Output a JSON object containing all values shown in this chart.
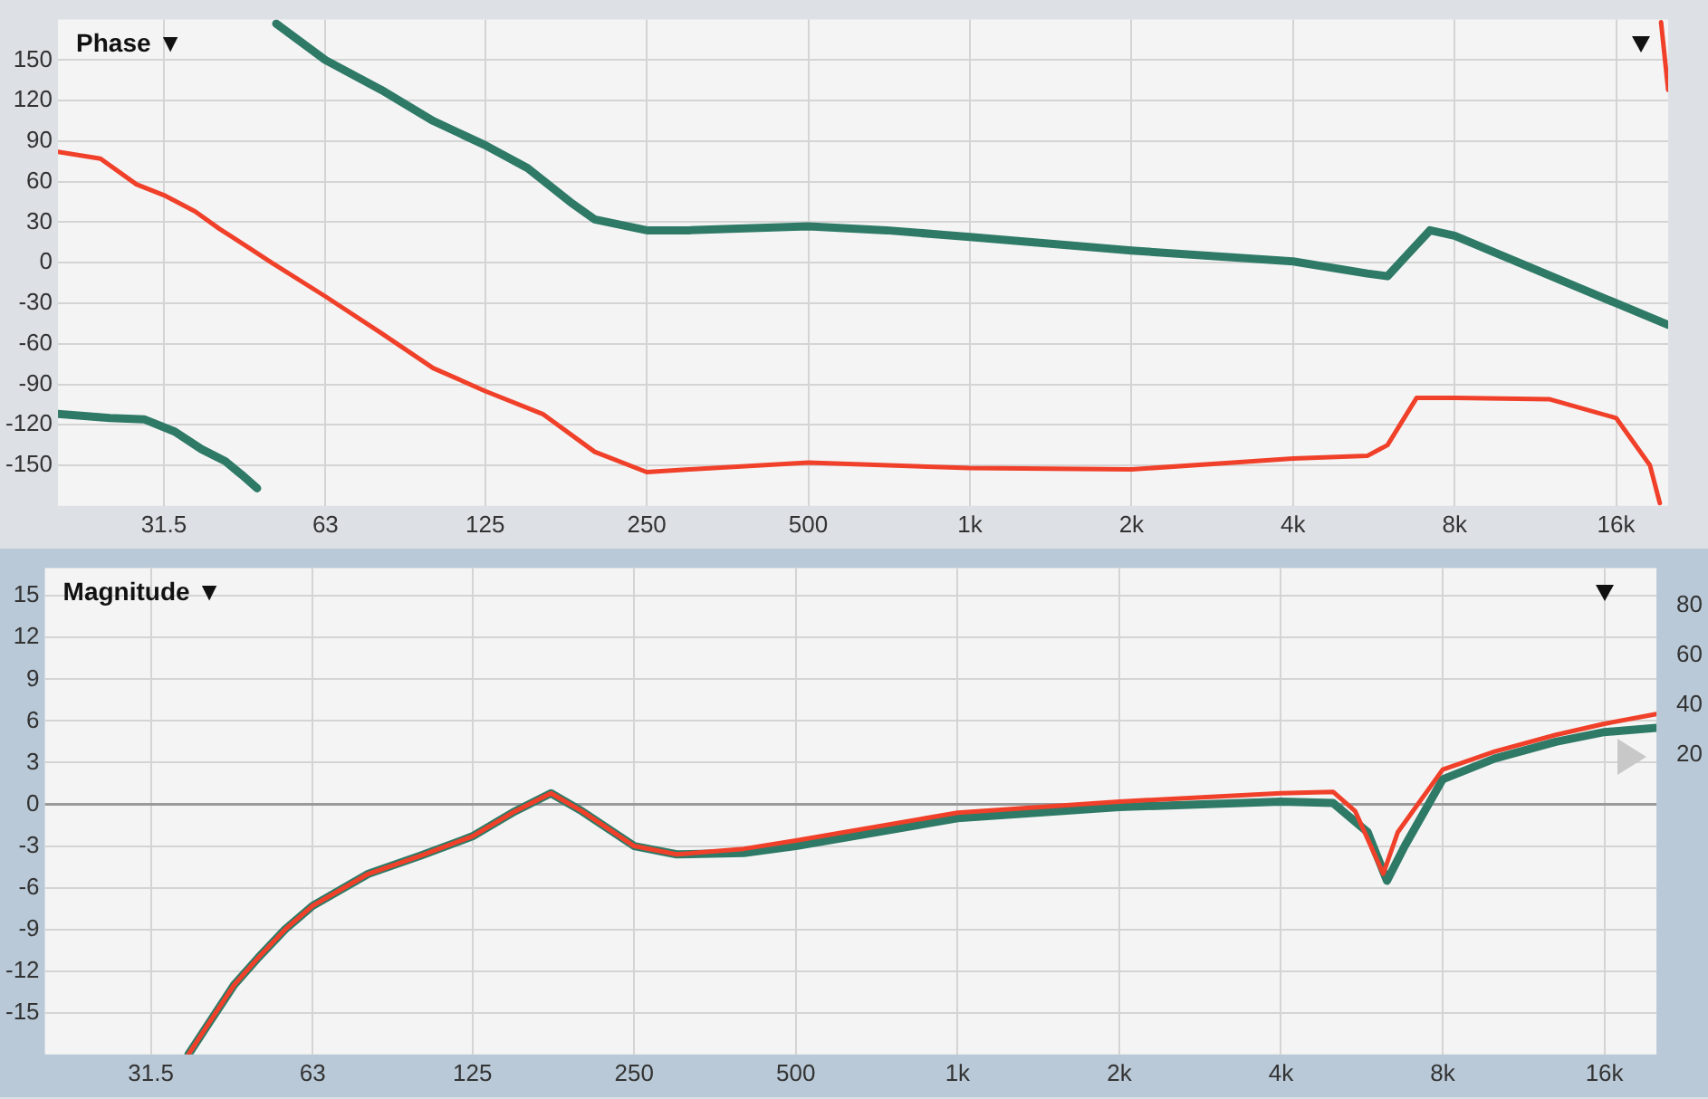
{
  "chart_data": [
    {
      "type": "line",
      "title": "Phase ▼",
      "log": "x",
      "grid": true,
      "legend": false,
      "xlim": [
        20,
        20000
      ],
      "xticks": [
        31.5,
        63,
        125,
        250,
        500,
        {
          "value": 1000,
          "label": "1k"
        },
        {
          "value": 2000,
          "label": "2k"
        },
        {
          "value": 4000,
          "label": "4k"
        },
        {
          "value": 8000,
          "label": "8k"
        },
        {
          "value": 16000,
          "label": "16k"
        }
      ],
      "ylim": [
        -180,
        180
      ],
      "yticks": [
        -150,
        -120,
        -90,
        -60,
        -30,
        0,
        30,
        60,
        90,
        120,
        150
      ],
      "series": [
        {
          "color": "#f0402a",
          "x": [
            20,
            24,
            28,
            31.5,
            36,
            40,
            45,
            50,
            63,
            80,
            100,
            125,
            160,
            200,
            250,
            300,
            500,
            1000,
            2000,
            4000,
            5500,
            6000,
            6800,
            8000,
            12000,
            16000,
            18500,
            19300,
            19350,
            19400,
            20000
          ],
          "values": [
            82,
            77,
            58,
            50,
            38,
            25,
            12,
            0,
            -25,
            -52,
            -78,
            -95,
            -112,
            -140,
            -155,
            -153,
            -148,
            -152,
            -153,
            -145,
            -143,
            -135,
            -100,
            -100,
            -101,
            -115,
            -150,
            -178,
            null,
            178,
            128
          ]
        },
        {
          "color": "#2e7a66",
          "x": [
            20,
            25,
            29,
            33,
            37,
            41,
            44,
            47,
            49,
            51,
            63,
            80,
            100,
            125,
            150,
            180,
            200,
            250,
            300,
            500,
            700,
            1000,
            2000,
            4000,
            5500,
            6000,
            6500,
            7200,
            8000,
            16000,
            20000
          ],
          "values": [
            -112,
            -115,
            -116,
            -125,
            -138,
            -147,
            -157,
            -167,
            null,
            177,
            150,
            128,
            105,
            87,
            70,
            45,
            32,
            24,
            24,
            27,
            24,
            19,
            9,
            1,
            -8,
            -10,
            5,
            24,
            20,
            -30,
            -46
          ]
        }
      ]
    },
    {
      "type": "line",
      "title": "Magnitude ▼",
      "log": "x",
      "grid": true,
      "legend": false,
      "xlim": [
        20,
        20000
      ],
      "xticks": [
        31.5,
        63,
        125,
        250,
        500,
        {
          "value": 1000,
          "label": "1k"
        },
        {
          "value": 2000,
          "label": "2k"
        },
        {
          "value": 4000,
          "label": "4k"
        },
        {
          "value": 8000,
          "label": "8k"
        },
        {
          "value": 16000,
          "label": "16k"
        }
      ],
      "ylim": [
        -18,
        17
      ],
      "yticks": [
        -15,
        -12,
        -9,
        -6,
        -3,
        0,
        3,
        6,
        9,
        12,
        15
      ],
      "y2lim": [
        -100,
        95
      ],
      "y2ticks": [
        20,
        40,
        60,
        80
      ],
      "ref_lines": [
        {
          "axis": "y",
          "value": 0,
          "color": "#9a9a9a"
        }
      ],
      "series": [
        {
          "color": "#f0402a",
          "x": [
            37,
            40,
            45,
            50,
            56,
            63,
            80,
            100,
            125,
            150,
            175,
            200,
            250,
            300,
            400,
            500,
            1000,
            2000,
            4000,
            5000,
            5500,
            6200,
            6600,
            8000,
            10000,
            13000,
            16000,
            20000
          ],
          "values": [
            -18,
            -16,
            -13,
            -11,
            -9,
            -7.3,
            -5,
            -3.7,
            -2.3,
            -0.5,
            0.8,
            -0.5,
            -3,
            -3.6,
            -3.2,
            -2.6,
            -0.6,
            0.2,
            0.8,
            0.9,
            -0.5,
            -5,
            -2,
            2.5,
            3.8,
            5,
            5.8,
            6.5
          ]
        },
        {
          "color": "#2e7a66",
          "x": [
            37,
            40,
            45,
            50,
            56,
            63,
            80,
            100,
            125,
            150,
            175,
            200,
            250,
            300,
            400,
            500,
            1000,
            2000,
            4000,
            5000,
            5800,
            6300,
            6800,
            8000,
            10000,
            13000,
            16000,
            20000
          ],
          "values": [
            -18,
            -16,
            -13,
            -11,
            -9,
            -7.3,
            -5,
            -3.7,
            -2.3,
            -0.5,
            0.8,
            -0.5,
            -3,
            -3.6,
            -3.5,
            -3,
            -1,
            -0.2,
            0.2,
            0.1,
            -2,
            -5.5,
            -3,
            1.8,
            3.3,
            4.5,
            5.2,
            5.5
          ]
        }
      ]
    }
  ]
}
